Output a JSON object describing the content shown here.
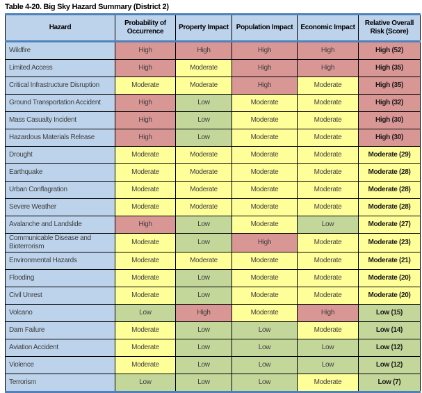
{
  "title": "Table 4-20. Big Sky Hazard Summary (District 2)",
  "colors": {
    "high": "#D89694",
    "moderate": "#FFFF99",
    "low": "#C4D79B",
    "header": "#BDD3EB",
    "accent": "#4F81BD"
  },
  "table": {
    "columns": [
      "Hazard",
      "Probability of Occurrence",
      "Property Impact",
      "Population Impact",
      "Economic Impact",
      "Relative Overall Risk (Score)"
    ],
    "rows": [
      {
        "hazard": "Wildfire",
        "probability": "High",
        "property": "High",
        "population": "High",
        "economic": "High",
        "risk": "High (52)"
      },
      {
        "hazard": "Limited Access",
        "probability": "High",
        "property": "Moderate",
        "population": "High",
        "economic": "High",
        "risk": "High (35)"
      },
      {
        "hazard": "Critical Infrastructure Disruption",
        "probability": "Moderate",
        "property": "Moderate",
        "population": "High",
        "economic": "Moderate",
        "risk": "High (35)"
      },
      {
        "hazard": "Ground Transportation Accident",
        "probability": "High",
        "property": "Low",
        "population": "Moderate",
        "economic": "Moderate",
        "risk": "High (32)"
      },
      {
        "hazard": "Mass Casualty Incident",
        "probability": "High",
        "property": "Low",
        "population": "Moderate",
        "economic": "Moderate",
        "risk": "High (30)"
      },
      {
        "hazard": "Hazardous Materials Release",
        "probability": "High",
        "property": "Low",
        "population": "Moderate",
        "economic": "Moderate",
        "risk": "High (30)"
      },
      {
        "hazard": "Drought",
        "probability": "Moderate",
        "property": "Moderate",
        "population": "Moderate",
        "economic": "Moderate",
        "risk": "Moderate (29)"
      },
      {
        "hazard": "Earthquake",
        "probability": "Moderate",
        "property": "Moderate",
        "population": "Moderate",
        "economic": "Moderate",
        "risk": "Moderate (28)"
      },
      {
        "hazard": "Urban Conflagration",
        "probability": "Moderate",
        "property": "Moderate",
        "population": "Moderate",
        "economic": "Moderate",
        "risk": "Moderate (28)"
      },
      {
        "hazard": "Severe Weather",
        "probability": "Moderate",
        "property": "Moderate",
        "population": "Moderate",
        "economic": "Moderate",
        "risk": "Moderate (28)"
      },
      {
        "hazard": "Avalanche and Landslide",
        "probability": "High",
        "property": "Low",
        "population": "Moderate",
        "economic": "Low",
        "risk": "Moderate (27)"
      },
      {
        "hazard": "Communicable Disease and Bioterrorism",
        "probability": "Moderate",
        "property": "Low",
        "population": "High",
        "economic": "Moderate",
        "risk": "Moderate (23)"
      },
      {
        "hazard": "Environmental Hazards",
        "probability": "Moderate",
        "property": "Moderate",
        "population": "Moderate",
        "economic": "Moderate",
        "risk": "Moderate (21)"
      },
      {
        "hazard": "Flooding",
        "probability": "Moderate",
        "property": "Low",
        "population": "Moderate",
        "economic": "Moderate",
        "risk": "Moderate (20)"
      },
      {
        "hazard": "Civil Unrest",
        "probability": "Moderate",
        "property": "Low",
        "population": "Moderate",
        "economic": "Moderate",
        "risk": "Moderate (20)"
      },
      {
        "hazard": "Volcano",
        "probability": "Low",
        "property": "High",
        "population": "Moderate",
        "economic": "High",
        "risk": "Low (15)"
      },
      {
        "hazard": "Dam Failure",
        "probability": "Moderate",
        "property": "Low",
        "population": "Low",
        "economic": "Moderate",
        "risk": "Low (14)"
      },
      {
        "hazard": "Aviation Accident",
        "probability": "Moderate",
        "property": "Low",
        "population": "Low",
        "economic": "Low",
        "risk": "Low (12)"
      },
      {
        "hazard": "Violence",
        "probability": "Moderate",
        "property": "Low",
        "population": "Low",
        "economic": "Low",
        "risk": "Low (12)"
      },
      {
        "hazard": "Terrorism",
        "probability": "Low",
        "property": "Low",
        "population": "Low",
        "economic": "Moderate",
        "risk": "Low (7)"
      }
    ]
  }
}
